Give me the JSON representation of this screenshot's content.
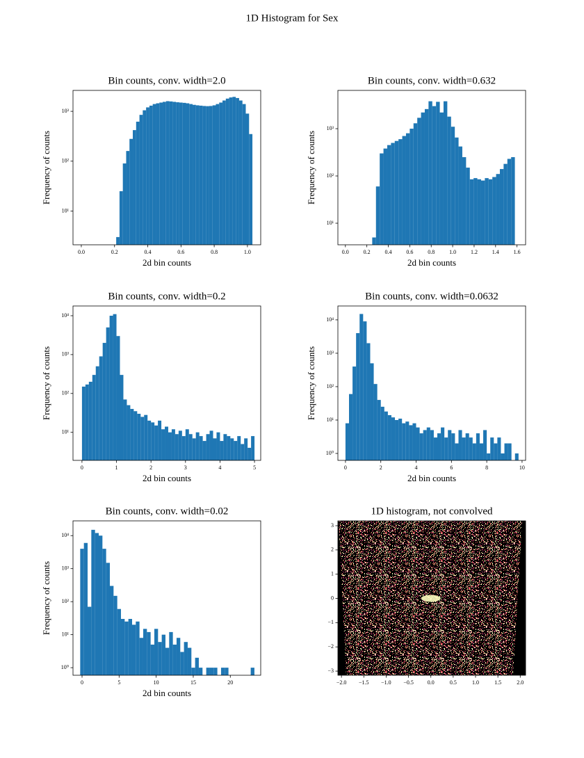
{
  "title": "1D Histogram for Sex",
  "chart_data": [
    {
      "type": "histogram",
      "title": "Bin counts, conv. width=2.0",
      "xlabel": "2d bin counts",
      "ylabel": "Frequency of counts",
      "color": "#1f77b4",
      "log_y": true,
      "bins": [
        0.21,
        0.23,
        0.25,
        0.27,
        0.29,
        0.31,
        0.33,
        0.35,
        0.37,
        0.39,
        0.41,
        0.43,
        0.45,
        0.47,
        0.49,
        0.51,
        0.53,
        0.55,
        0.57,
        0.59,
        0.61,
        0.63,
        0.65,
        0.67,
        0.69,
        0.71,
        0.73,
        0.75,
        0.77,
        0.79,
        0.81,
        0.83,
        0.85,
        0.87,
        0.89,
        0.91,
        0.93,
        0.95,
        0.97,
        0.99,
        1.01,
        1.03
      ],
      "values": [
        3,
        25,
        90,
        160,
        280,
        420,
        620,
        850,
        1050,
        1200,
        1300,
        1400,
        1450,
        1500,
        1550,
        1600,
        1580,
        1550,
        1520,
        1500,
        1480,
        1450,
        1400,
        1350,
        1320,
        1300,
        1280,
        1270,
        1280,
        1320,
        1400,
        1500,
        1650,
        1800,
        1900,
        1950,
        1850,
        1650,
        1400,
        900,
        350
      ],
      "xlim": [
        -0.05,
        1.08
      ],
      "ylim": [
        2.1,
        2630
      ],
      "xticks": [
        {
          "value": 0,
          "label": "0.0"
        },
        0.2,
        0.4,
        0.6,
        0.8,
        {
          "value": 1,
          "label": "1.0"
        }
      ],
      "yticks": [
        {
          "value": 10,
          "label": "10¹"
        },
        {
          "value": 100,
          "label": "10²"
        },
        {
          "value": 1000,
          "label": "10³"
        }
      ]
    },
    {
      "type": "histogram",
      "title": "Bin counts, conv. width=0.632",
      "xlabel": "2d bin counts",
      "ylabel": "Frequency of counts",
      "color": "#1f77b4",
      "log_y": true,
      "bins": [
        0.25,
        0.285,
        0.32,
        0.355,
        0.39,
        0.425,
        0.46,
        0.495,
        0.53,
        0.565,
        0.6,
        0.635,
        0.67,
        0.705,
        0.74,
        0.775,
        0.81,
        0.845,
        0.88,
        0.915,
        0.95,
        0.985,
        1.02,
        1.055,
        1.09,
        1.125,
        1.16,
        1.195,
        1.23,
        1.265,
        1.3,
        1.335,
        1.37,
        1.405,
        1.44,
        1.475,
        1.51,
        1.545,
        1.58
      ],
      "values": [
        5,
        60,
        300,
        380,
        450,
        500,
        550,
        600,
        700,
        800,
        1000,
        1300,
        1700,
        2200,
        2600,
        3800,
        3000,
        3700,
        2200,
        3800,
        1800,
        1100,
        650,
        420,
        250,
        150,
        85,
        90,
        85,
        80,
        90,
        85,
        95,
        110,
        140,
        180,
        230,
        250
      ],
      "xlim": [
        -0.07,
        1.68
      ],
      "ylim": [
        3.5,
        6450
      ],
      "xticks": [
        {
          "value": 0,
          "label": "0.0"
        },
        0.2,
        0.4,
        0.6,
        0.8,
        {
          "value": 1,
          "label": "1.0"
        },
        1.2,
        1.4,
        1.6
      ],
      "yticks": [
        {
          "value": 10,
          "label": "10¹"
        },
        {
          "value": 100,
          "label": "10²"
        },
        {
          "value": 1000,
          "label": "10³"
        }
      ]
    },
    {
      "type": "histogram",
      "title": "Bin counts, conv. width=0.2",
      "xlabel": "2d bin counts",
      "ylabel": "Frequency of counts",
      "color": "#1f77b4",
      "log_y": true,
      "bins": [
        0,
        0.1,
        0.2,
        0.3,
        0.4,
        0.5,
        0.6,
        0.7,
        0.8,
        0.9,
        1.0,
        1.1,
        1.2,
        1.3,
        1.4,
        1.5,
        1.6,
        1.7,
        1.8,
        1.9,
        2.0,
        2.1,
        2.2,
        2.3,
        2.4,
        2.5,
        2.6,
        2.7,
        2.8,
        2.9,
        3.0,
        3.1,
        3.2,
        3.3,
        3.4,
        3.5,
        3.6,
        3.7,
        3.8,
        3.9,
        4.0,
        4.1,
        4.2,
        4.3,
        4.4,
        4.5,
        4.6,
        4.7,
        4.8,
        4.9,
        5.0
      ],
      "values": [
        150,
        170,
        200,
        300,
        500,
        900,
        2000,
        5000,
        10000,
        11000,
        3000,
        300,
        70,
        50,
        40,
        35,
        30,
        25,
        28,
        20,
        18,
        15,
        20,
        12,
        14,
        10,
        12,
        9,
        11,
        8,
        12,
        9,
        7,
        10,
        8,
        6,
        9,
        11,
        7,
        10,
        6,
        9,
        8,
        7,
        6,
        8,
        5,
        7,
        4,
        8
      ],
      "xlim": [
        -0.26,
        5.18
      ],
      "ylim": [
        1.9,
        17800
      ],
      "xticks": [
        0,
        1,
        2,
        3,
        4,
        5
      ],
      "yticks": [
        {
          "value": 10,
          "label": "10¹"
        },
        {
          "value": 100,
          "label": "10²"
        },
        {
          "value": 1000,
          "label": "10³"
        },
        {
          "value": 10000,
          "label": "10⁴"
        }
      ]
    },
    {
      "type": "histogram",
      "title": "Bin counts, conv. width=0.0632",
      "xlabel": "2d bin counts",
      "ylabel": "Frequency of counts",
      "color": "#1f77b4",
      "log_y": true,
      "bins": [
        0,
        0.2,
        0.4,
        0.6,
        0.8,
        1.0,
        1.2,
        1.4,
        1.6,
        1.8,
        2.0,
        2.2,
        2.4,
        2.6,
        2.8,
        3.0,
        3.2,
        3.4,
        3.6,
        3.8,
        4.0,
        4.2,
        4.4,
        4.6,
        4.8,
        5.0,
        5.2,
        5.4,
        5.6,
        5.8,
        6.0,
        6.2,
        6.4,
        6.6,
        6.8,
        7.0,
        7.2,
        7.4,
        7.6,
        7.8,
        8.0,
        8.2,
        8.4,
        8.6,
        8.8,
        9.0,
        9.2,
        9.4,
        9.6,
        9.8
      ],
      "values": [
        8,
        60,
        400,
        4000,
        15000,
        9000,
        2000,
        500,
        120,
        40,
        25,
        18,
        14,
        12,
        10,
        11,
        8,
        9,
        7,
        8,
        6,
        4,
        5,
        6,
        5,
        3,
        4,
        6,
        3,
        5,
        4,
        2,
        5,
        3,
        4,
        3,
        2,
        4,
        2,
        5,
        1,
        3,
        2,
        3,
        1,
        2,
        2,
        0,
        1
      ],
      "xlim": [
        -0.43,
        10.2
      ],
      "ylim": [
        0.62,
        26000
      ],
      "xticks": [
        0,
        2,
        4,
        6,
        8,
        10
      ],
      "yticks": [
        {
          "value": 1,
          "label": "10⁰"
        },
        {
          "value": 10,
          "label": "10¹"
        },
        {
          "value": 100,
          "label": "10²"
        },
        {
          "value": 1000,
          "label": "10³"
        },
        {
          "value": 10000,
          "label": "10⁴"
        }
      ]
    },
    {
      "type": "histogram",
      "title": "Bin counts, conv. width=0.02",
      "xlabel": "2d bin counts",
      "ylabel": "Frequency of counts",
      "color": "#1f77b4",
      "log_y": true,
      "bins": [
        -0.25,
        0.25,
        0.75,
        1.25,
        1.75,
        2.25,
        2.75,
        3.25,
        3.75,
        4.25,
        4.75,
        5.25,
        5.75,
        6.25,
        6.75,
        7.25,
        7.75,
        8.25,
        8.75,
        9.25,
        9.75,
        10.25,
        10.75,
        11.25,
        11.75,
        12.25,
        12.75,
        13.25,
        13.75,
        14.25,
        14.75,
        15.25,
        15.75,
        16.25,
        16.75,
        17.25,
        17.75,
        18.25,
        18.75,
        19.25,
        19.75,
        20.25,
        20.75,
        21.25,
        21.75,
        22.25,
        22.75,
        23.25
      ],
      "values": [
        4000,
        6000,
        70,
        15000,
        12000,
        10000,
        4000,
        1500,
        300,
        150,
        60,
        30,
        25,
        30,
        20,
        25,
        8,
        15,
        12,
        5,
        15,
        6,
        10,
        4,
        12,
        5,
        8,
        3,
        6,
        4,
        1,
        2,
        1,
        0,
        1,
        1,
        1,
        0,
        1,
        1,
        0,
        0,
        0,
        0,
        0,
        0,
        1
      ],
      "xlim": [
        -1.22,
        24.1
      ],
      "ylim": [
        0.59,
        28000
      ],
      "xticks": [
        0,
        5,
        10,
        15,
        20
      ],
      "yticks": [
        {
          "value": 1,
          "label": "10⁰"
        },
        {
          "value": 10,
          "label": "10¹"
        },
        {
          "value": 100,
          "label": "10²"
        },
        {
          "value": 1000,
          "label": "10³"
        },
        {
          "value": 10000,
          "label": "10⁴"
        }
      ]
    },
    {
      "type": "image",
      "title": "1D histogram, not convolved",
      "xlim": [
        -2.08,
        2.12
      ],
      "ylim": [
        -3.17,
        3.2
      ],
      "xticks": [
        {
          "value": -2,
          "label": "−2.0"
        },
        {
          "value": -1.5,
          "label": "−1.5"
        },
        {
          "value": -1,
          "label": "−1.0"
        },
        {
          "value": -0.5,
          "label": "−0.5"
        },
        {
          "value": 0,
          "label": "0.0"
        },
        0.5,
        {
          "value": 1,
          "label": "1.0"
        },
        1.5,
        {
          "value": 2,
          "label": "2.0"
        }
      ],
      "yticks": [
        {
          "value": -3,
          "label": "−3"
        },
        {
          "value": -2,
          "label": "−2"
        },
        {
          "value": -1,
          "label": "−1"
        },
        0,
        1,
        2,
        3
      ]
    }
  ]
}
